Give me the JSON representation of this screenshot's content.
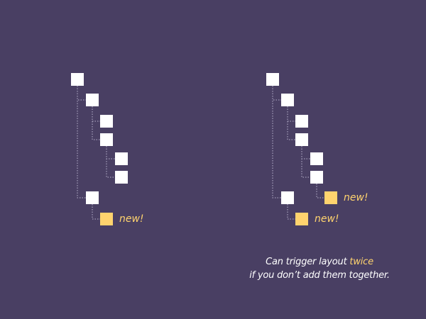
{
  "colors": {
    "background": "#493f63",
    "node": "#ffffff",
    "new_node": "#ffd36e",
    "connector": "#b8b2cc"
  },
  "left_tree": {
    "new_label": "new!"
  },
  "right_tree": {
    "new_label_1": "new!",
    "new_label_2": "new!"
  },
  "caption": {
    "line1_prefix": "Can trigger layout ",
    "line1_emphasis": "twice",
    "line2": "if you don’t add them together."
  }
}
